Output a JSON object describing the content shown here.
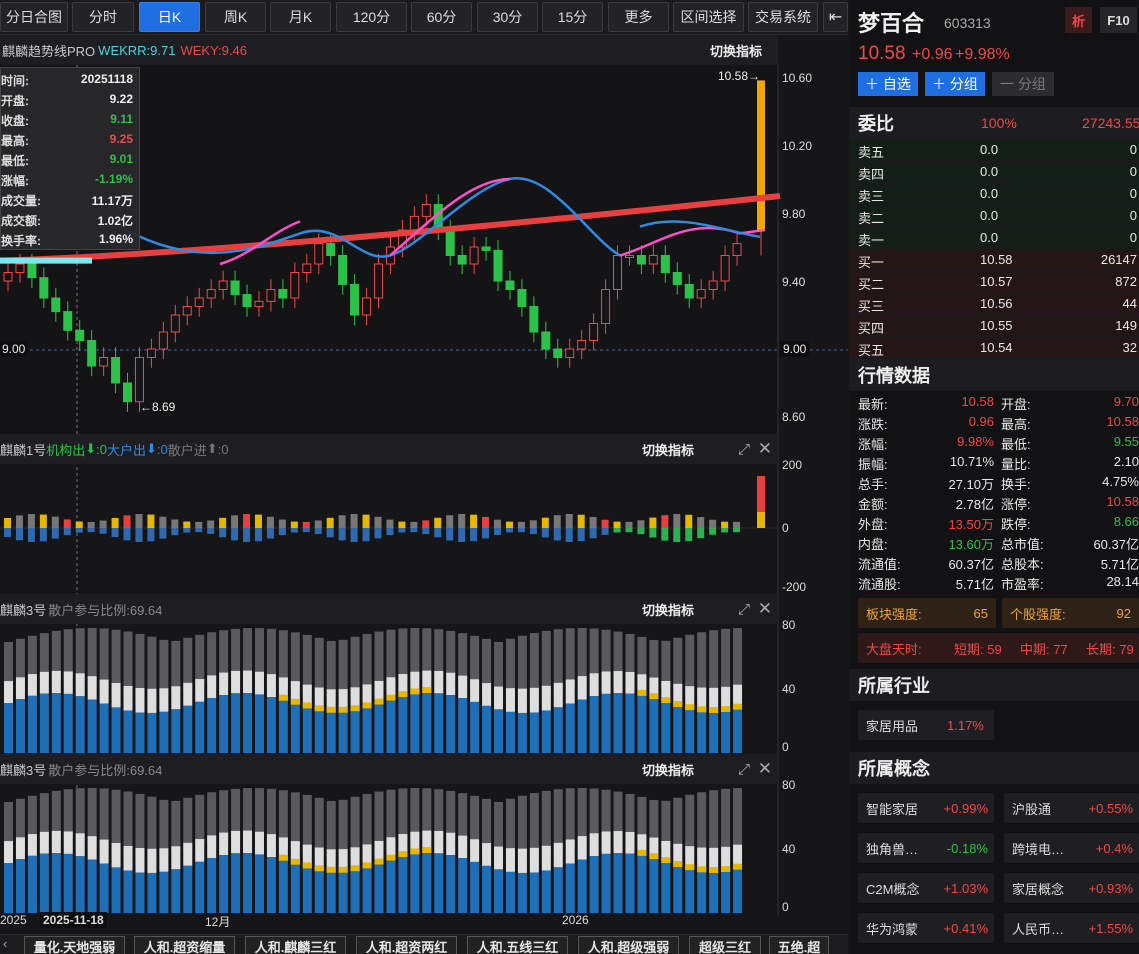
{
  "periods": [
    "分日合图",
    "分时",
    "日K",
    "周K",
    "月K",
    "120分",
    "60分",
    "30分",
    "15分",
    "更多",
    "区间选择",
    "交易系统"
  ],
  "active_period": "日K",
  "stock": {
    "name": "梦百合",
    "code": "603313",
    "analyze": "析",
    "f10": "F10",
    "price": "10.58",
    "change": "+0.96",
    "pct": "+9.98%",
    "btn_add": "＋ 自选",
    "btn_group": "＋ 分组",
    "btn_one_group": "一 分组"
  },
  "main_panel": {
    "indicator_name": "麒麟趋势线PRO",
    "wekrr": "WEKRR:9.71",
    "weky": "WEKY:9.46",
    "switch": "切换指标",
    "y_ticks": [
      "10.60",
      "10.20",
      "9.80",
      "9.40",
      "9.00",
      "8.60"
    ],
    "ref_price": "9.00",
    "ref_price_left": "9.00",
    "max_label": "10.58→",
    "min_label": "←8.69"
  },
  "tooltip": [
    {
      "k": "时间:",
      "v": "20251118"
    },
    {
      "k": "开盘:",
      "v": "9.22"
    },
    {
      "k": "收盘:",
      "v": "9.11"
    },
    {
      "k": "最高:",
      "v": "9.25"
    },
    {
      "k": "最低:",
      "v": "9.01"
    },
    {
      "k": "涨幅:",
      "v": "-1.19%"
    },
    {
      "k": "成交量:",
      "v": "11.17万"
    },
    {
      "k": "成交额:",
      "v": "1.02亿"
    },
    {
      "k": "换手率:",
      "v": "1.96%"
    }
  ],
  "panel2": {
    "name": "麒麟1号",
    "a": "机构出",
    "a_arrow": "⬇",
    "a_val": ":0",
    "b": "大户出",
    "b_arrow": "⬇",
    "b_val": ":0",
    "c": "散户进",
    "c_arrow": "⬆",
    "c_val": ":0",
    "switch": "切换指标",
    "ticks": [
      "200",
      "0",
      "-200"
    ]
  },
  "panel3": {
    "name": "麒麟3号",
    "sub": "散户参与比例:69.64",
    "switch": "切换指标",
    "ticks": [
      "80",
      "40",
      "0"
    ]
  },
  "panel4": {
    "name": "麒麟3号",
    "sub": "散户参与比例:69.64",
    "switch": "切换指标",
    "ticks": [
      "80",
      "40",
      "0"
    ]
  },
  "xaxis": {
    "left": "2025",
    "cursor": "2025-11-18",
    "m12": "12月",
    "y2026": "2026"
  },
  "strategies": [
    "量化.天地强弱",
    "人和.超资缩量",
    "人和.麒麟三红",
    "人和.超资两红",
    "人和.五线三红",
    "人和.超级强弱",
    "超级三红",
    "五绝.超"
  ],
  "weibi": {
    "title": "委比",
    "pct": "100%",
    "diff": "27243.55"
  },
  "orderbook": [
    {
      "l": "卖五",
      "p": "0.0",
      "v": "0"
    },
    {
      "l": "卖四",
      "p": "0.0",
      "v": "0"
    },
    {
      "l": "卖三",
      "p": "0.0",
      "v": "0"
    },
    {
      "l": "卖二",
      "p": "0.0",
      "v": "0"
    },
    {
      "l": "卖一",
      "p": "0.0",
      "v": "0"
    },
    {
      "l": "买一",
      "p": "10.58",
      "v": "26147"
    },
    {
      "l": "买二",
      "p": "10.57",
      "v": "872"
    },
    {
      "l": "买三",
      "p": "10.56",
      "v": "44"
    },
    {
      "l": "买四",
      "p": "10.55",
      "v": "149"
    },
    {
      "l": "买五",
      "p": "10.54",
      "v": "32"
    }
  ],
  "quote_title": "行情数据",
  "quote": [
    {
      "k1": "最新:",
      "v1": "10.58",
      "c1": "red",
      "k2": "开盘:",
      "v2": "9.70",
      "c2": "red"
    },
    {
      "k1": "涨跌:",
      "v1": "0.96",
      "c1": "red",
      "k2": "最高:",
      "v2": "10.58",
      "c2": "red"
    },
    {
      "k1": "涨幅:",
      "v1": "9.98%",
      "c1": "red",
      "k2": "最低:",
      "v2": "9.55",
      "c2": "green"
    },
    {
      "k1": "振幅:",
      "v1": "10.71%",
      "c1": "white",
      "k2": "量比:",
      "v2": "2.10",
      "c2": "white"
    },
    {
      "k1": "总手:",
      "v1": "27.10万",
      "c1": "white",
      "k2": "换手:",
      "v2": "4.75%",
      "c2": "white"
    },
    {
      "k1": "金额:",
      "v1": "2.78亿",
      "c1": "white",
      "k2": "涨停:",
      "v2": "10.58",
      "c2": "red"
    },
    {
      "k1": "外盘:",
      "v1": "13.50万",
      "c1": "red",
      "k2": "跌停:",
      "v2": "8.66",
      "c2": "green"
    },
    {
      "k1": "内盘:",
      "v1": "13.60万",
      "c1": "green",
      "k2": "总市值:",
      "v2": "60.37亿",
      "c2": "white"
    },
    {
      "k1": "流通值:",
      "v1": "60.37亿",
      "c1": "white",
      "k2": "总股本:",
      "v2": "5.71亿",
      "c2": "white"
    },
    {
      "k1": "流通股:",
      "v1": "5.71亿",
      "c1": "white",
      "k2": "市盈率:",
      "v2": "28.14",
      "c2": "white"
    }
  ],
  "strength": {
    "block_label": "板块强度:",
    "block_val": "65",
    "stock_label": "个股强度:",
    "stock_val": "92"
  },
  "market": {
    "label": "大盘天时:",
    "short": "短期: 59",
    "mid": "中期: 77",
    "long": "长期: 79"
  },
  "industry_title": "所属行业",
  "industry": {
    "name": "家居用品",
    "pct": "1.17%"
  },
  "concept_title": "所属概念",
  "concepts": [
    {
      "n": "智能家居",
      "p": "+0.99%",
      "c": "red"
    },
    {
      "n": "沪股通",
      "p": "+0.55%",
      "c": "red"
    },
    {
      "n": "独角兽…",
      "p": "-0.18%",
      "c": "green"
    },
    {
      "n": "跨境电…",
      "p": "+0.4%",
      "c": "red"
    },
    {
      "n": "C2M概念",
      "p": "+1.03%",
      "c": "red"
    },
    {
      "n": "家居概念",
      "p": "+0.93%",
      "c": "red"
    },
    {
      "n": "华为鸿蒙",
      "p": "+0.41%",
      "c": "red"
    },
    {
      "n": "人民币…",
      "p": "+1.55%",
      "c": "red"
    }
  ]
}
